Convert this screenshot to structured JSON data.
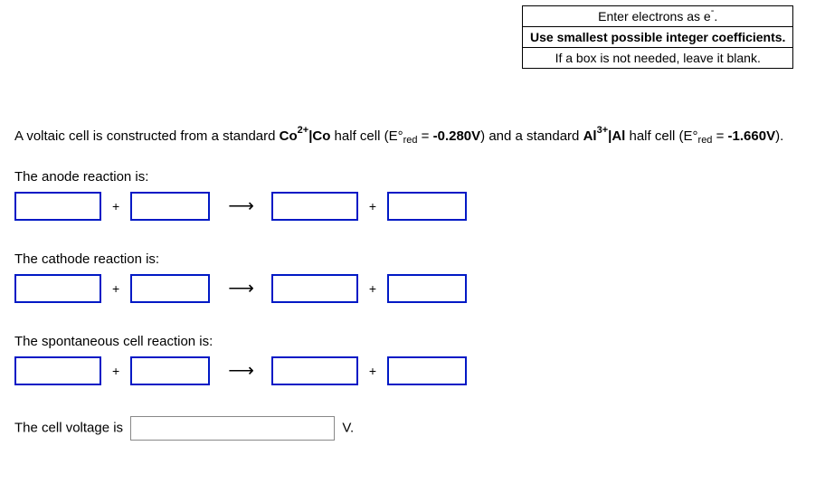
{
  "instructions": {
    "line1_pre": "Enter electrons as e",
    "line1_sup": "-",
    "line1_post": ".",
    "line2": "Use smallest possible integer coefficients.",
    "line3": "If a box is not needed, leave it blank."
  },
  "problem": {
    "pre": "A voltaic cell is constructed from a standard ",
    "co": "Co",
    "co_sup": "2+",
    "co_sep": "|Co",
    "co_half": " half cell (E°",
    "red_sub": "red",
    "eq": " = ",
    "co_val": "-0.280V",
    "mid": ") and a standard ",
    "al": "Al",
    "al_sup": "3+",
    "al_sep": "|Al",
    "al_half": " half cell (E°",
    "al_val": "-1.660V",
    "end": ")."
  },
  "labels": {
    "anode": "The anode reaction is:",
    "cathode": "The cathode reaction is:",
    "spont": "The spontaneous cell reaction is:",
    "voltage_pre": "The cell voltage is",
    "voltage_unit": "V."
  },
  "ops": {
    "plus": "+",
    "arrow": "⟶"
  }
}
